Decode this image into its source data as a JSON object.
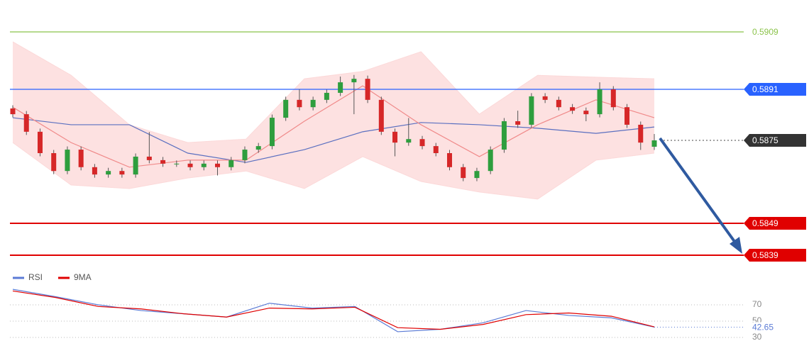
{
  "chart_data": [
    {
      "type": "candlestick",
      "ylim": [
        0.5834,
        0.5919
      ],
      "up_color": "#2e9e3e",
      "down_color": "#d62728",
      "open": [
        0.5885,
        0.58832,
        0.58777,
        0.5871,
        0.58654,
        0.58721,
        0.58666,
        0.58643,
        0.58654,
        0.58643,
        0.58699,
        0.58688,
        0.58677,
        0.58677,
        0.58666,
        0.58677,
        0.58666,
        0.58688,
        0.58721,
        0.58732,
        0.58821,
        0.58877,
        0.58854,
        0.58877,
        0.58899,
        0.58932,
        0.58943,
        0.58877,
        0.58777,
        0.58743,
        0.58754,
        0.58732,
        0.5871,
        0.58666,
        0.58632,
        0.58654,
        0.58721,
        0.5881,
        0.58799,
        0.58888,
        0.58877,
        0.58854,
        0.58843,
        0.58832,
        0.5891,
        0.58854,
        0.58799,
        0.5873
      ],
      "high": [
        0.5886,
        0.58842,
        0.58787,
        0.5872,
        0.58731,
        0.58731,
        0.58676,
        0.58664,
        0.58664,
        0.58709,
        0.58776,
        0.58698,
        0.58687,
        0.58687,
        0.58687,
        0.58687,
        0.58698,
        0.58731,
        0.58742,
        0.58831,
        0.58887,
        0.5891,
        0.58887,
        0.58909,
        0.5895,
        0.58955,
        0.58953,
        0.58887,
        0.58787,
        0.5882,
        0.58764,
        0.58742,
        0.5872,
        0.58676,
        0.58664,
        0.58731,
        0.5882,
        0.58843,
        0.58898,
        0.58898,
        0.58887,
        0.58864,
        0.58853,
        0.58932,
        0.5892,
        0.58864,
        0.58809,
        0.5877
      ],
      "low": [
        0.58822,
        0.58767,
        0.587,
        0.58644,
        0.58644,
        0.58656,
        0.58633,
        0.58633,
        0.58633,
        0.58633,
        0.58678,
        0.58667,
        0.58667,
        0.58656,
        0.58656,
        0.5864,
        0.58656,
        0.58678,
        0.58711,
        0.58722,
        0.58811,
        0.58844,
        0.58844,
        0.58867,
        0.58889,
        0.58832,
        0.58867,
        0.58767,
        0.587,
        0.58733,
        0.58722,
        0.587,
        0.58656,
        0.58622,
        0.58622,
        0.58644,
        0.58711,
        0.58789,
        0.58789,
        0.58867,
        0.58844,
        0.58833,
        0.5881,
        0.58822,
        0.58844,
        0.58789,
        0.5872,
        0.5872
      ],
      "close": [
        0.58832,
        0.58777,
        0.5871,
        0.58654,
        0.58721,
        0.58666,
        0.58643,
        0.58654,
        0.58643,
        0.58699,
        0.58688,
        0.58677,
        0.58677,
        0.58666,
        0.58677,
        0.58666,
        0.58688,
        0.58721,
        0.58732,
        0.58821,
        0.58877,
        0.58854,
        0.58877,
        0.58899,
        0.58932,
        0.58943,
        0.58877,
        0.58777,
        0.58743,
        0.58754,
        0.58732,
        0.5871,
        0.58666,
        0.58632,
        0.58654,
        0.58721,
        0.5881,
        0.58799,
        0.58888,
        0.58877,
        0.58854,
        0.58843,
        0.58832,
        0.5891,
        0.58854,
        0.58799,
        0.58743,
        0.5875
      ],
      "band_color": "#fcd9d9",
      "band_upper": [
        0.59059,
        0.58954,
        0.58799,
        0.58743,
        0.58754,
        0.58943,
        0.58966,
        0.59028,
        0.58832,
        0.58954,
        0.58948,
        0.58943
      ],
      "band_lower": [
        0.58743,
        0.5861,
        0.58599,
        0.58632,
        0.58654,
        0.58599,
        0.58699,
        0.58621,
        0.58588,
        0.58566,
        0.58688,
        0.5871
      ],
      "lines": [
        {
          "color": "#5a6fc0",
          "values": [
            0.58821,
            0.58799,
            0.58799,
            0.5871,
            0.58681,
            0.58721,
            0.58777,
            0.58806,
            0.58799,
            0.58788,
            0.58772,
            0.58792
          ]
        },
        {
          "color": "#f08a8a",
          "values": [
            0.58854,
            0.58743,
            0.58666,
            0.58688,
            0.58688,
            0.5881,
            0.58921,
            0.58799,
            0.58699,
            0.58799,
            0.58877,
            0.58821
          ]
        }
      ],
      "levels": [
        {
          "value": 0.5909,
          "color": "#8bc34a",
          "boxed": false
        },
        {
          "value": 0.5891,
          "color": "#2962ff",
          "boxed": true
        },
        {
          "value": 0.5875,
          "color": "#333333",
          "boxed": true,
          "dotted": true
        },
        {
          "value": 0.5849,
          "color": "#e00000",
          "boxed": true
        },
        {
          "value": 0.5839,
          "color": "#e00000",
          "boxed": true
        }
      ]
    },
    {
      "type": "line",
      "ylim": [
        20,
        100
      ],
      "yticks": [
        30,
        50,
        70
      ],
      "series": [
        {
          "name": "RSI",
          "color": "#5b7bd5",
          "values": [
            89,
            80,
            70,
            63,
            59,
            55,
            72,
            66,
            68,
            37,
            40,
            48,
            63,
            57,
            54,
            42.65
          ]
        },
        {
          "name": "9MA",
          "color": "#e00000",
          "values": [
            87,
            79,
            68,
            65,
            59,
            55,
            66,
            65,
            67,
            42,
            40,
            46,
            58,
            60,
            56,
            43
          ]
        }
      ]
    }
  ]
}
